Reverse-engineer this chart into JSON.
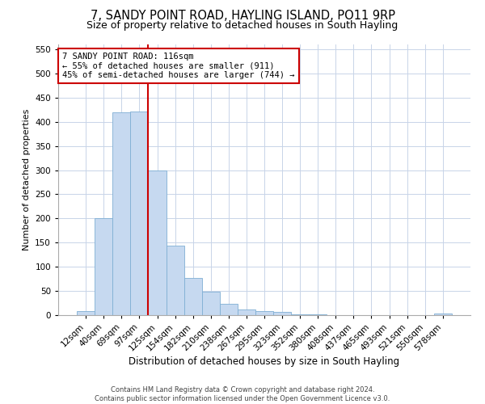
{
  "title": "7, SANDY POINT ROAD, HAYLING ISLAND, PO11 9RP",
  "subtitle": "Size of property relative to detached houses in South Hayling",
  "xlabel": "Distribution of detached houses by size in South Hayling",
  "ylabel": "Number of detached properties",
  "footer_line1": "Contains HM Land Registry data © Crown copyright and database right 2024.",
  "footer_line2": "Contains public sector information licensed under the Open Government Licence v3.0.",
  "bar_labels": [
    "12sqm",
    "40sqm",
    "69sqm",
    "97sqm",
    "125sqm",
    "154sqm",
    "182sqm",
    "210sqm",
    "238sqm",
    "267sqm",
    "295sqm",
    "323sqm",
    "352sqm",
    "380sqm",
    "408sqm",
    "437sqm",
    "465sqm",
    "493sqm",
    "521sqm",
    "550sqm",
    "578sqm"
  ],
  "bar_values": [
    8,
    200,
    420,
    422,
    300,
    143,
    77,
    49,
    24,
    12,
    8,
    7,
    2,
    2,
    0,
    0,
    0,
    0,
    0,
    0,
    4
  ],
  "bar_color": "#c6d9f0",
  "bar_edge_color": "#7fafd4",
  "vline_color": "#cc0000",
  "vline_x_index": 3.5,
  "annotation_text": "7 SANDY POINT ROAD: 116sqm\n← 55% of detached houses are smaller (911)\n45% of semi-detached houses are larger (744) →",
  "annotation_box_color": "#cc0000",
  "ylim": [
    0,
    560
  ],
  "yticks": [
    0,
    50,
    100,
    150,
    200,
    250,
    300,
    350,
    400,
    450,
    500,
    550
  ],
  "title_fontsize": 10.5,
  "subtitle_fontsize": 9,
  "xlabel_fontsize": 8.5,
  "ylabel_fontsize": 8,
  "tick_fontsize": 7.5,
  "annotation_fontsize": 7.5,
  "footer_fontsize": 6,
  "background_color": "#ffffff",
  "grid_color": "#c8d4e8"
}
